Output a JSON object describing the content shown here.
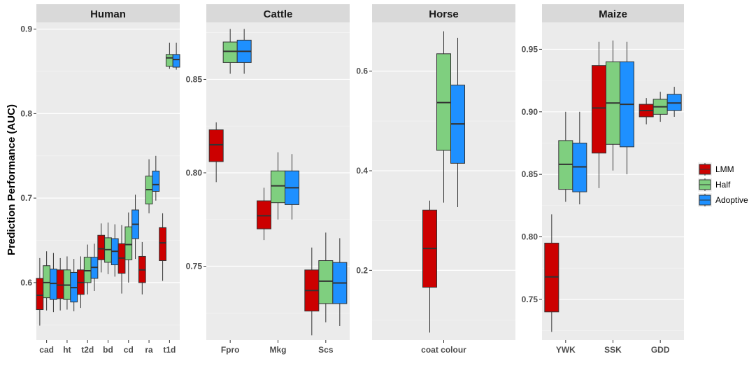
{
  "chart_data": {
    "type": "box",
    "ylabel": "Prediction Performance (AUC)",
    "colors": {
      "LMM": "#CC0000",
      "Half": "#7FCF7F",
      "Adoptive": "#1E90FF"
    },
    "legend": {
      "position": "right",
      "entries": [
        "LMM",
        "Half",
        "Adoptive"
      ]
    },
    "panels": [
      {
        "title": "Human",
        "ylim": [
          0.532,
          0.908
        ],
        "yticks": [
          0.6,
          0.7,
          0.8,
          0.9
        ],
        "ytick_labels": [
          "0.6",
          "0.7",
          "0.8",
          "0.9"
        ],
        "categories": [
          "cad",
          "ht",
          "t2d",
          "bd",
          "cd",
          "ra",
          "t1d"
        ],
        "boxes": [
          {
            "category": "cad",
            "series": "LMM",
            "lo": 0.549,
            "q1": 0.568,
            "med": 0.585,
            "q3": 0.605,
            "hi": 0.629
          },
          {
            "category": "cad",
            "series": "Half",
            "lo": 0.567,
            "q1": 0.582,
            "med": 0.6,
            "q3": 0.62,
            "hi": 0.637
          },
          {
            "category": "cad",
            "series": "Adoptive",
            "lo": 0.565,
            "q1": 0.58,
            "med": 0.599,
            "q3": 0.616,
            "hi": 0.635
          },
          {
            "category": "ht",
            "series": "LMM",
            "lo": 0.567,
            "q1": 0.581,
            "med": 0.597,
            "q3": 0.615,
            "hi": 0.629
          },
          {
            "category": "ht",
            "series": "Half",
            "lo": 0.568,
            "q1": 0.58,
            "med": 0.597,
            "q3": 0.615,
            "hi": 0.631
          },
          {
            "category": "ht",
            "series": "Adoptive",
            "lo": 0.566,
            "q1": 0.577,
            "med": 0.594,
            "q3": 0.612,
            "hi": 0.628
          },
          {
            "category": "t2d",
            "series": "LMM",
            "lo": 0.57,
            "q1": 0.586,
            "med": 0.6,
            "q3": 0.615,
            "hi": 0.631
          },
          {
            "category": "t2d",
            "series": "Half",
            "lo": 0.586,
            "q1": 0.6,
            "med": 0.614,
            "q3": 0.63,
            "hi": 0.645
          },
          {
            "category": "t2d",
            "series": "Adoptive",
            "lo": 0.59,
            "q1": 0.605,
            "med": 0.618,
            "q3": 0.63,
            "hi": 0.646
          },
          {
            "category": "bd",
            "series": "LMM",
            "lo": 0.612,
            "q1": 0.627,
            "med": 0.64,
            "q3": 0.656,
            "hi": 0.67
          },
          {
            "category": "bd",
            "series": "Half",
            "lo": 0.61,
            "q1": 0.624,
            "med": 0.639,
            "q3": 0.653,
            "hi": 0.671
          },
          {
            "category": "bd",
            "series": "Adoptive",
            "lo": 0.607,
            "q1": 0.621,
            "med": 0.637,
            "q3": 0.652,
            "hi": 0.669
          },
          {
            "category": "cd",
            "series": "LMM",
            "lo": 0.587,
            "q1": 0.611,
            "med": 0.629,
            "q3": 0.646,
            "hi": 0.668
          },
          {
            "category": "cd",
            "series": "Half",
            "lo": 0.6,
            "q1": 0.627,
            "med": 0.645,
            "q3": 0.666,
            "hi": 0.683
          },
          {
            "category": "cd",
            "series": "Adoptive",
            "lo": 0.628,
            "q1": 0.652,
            "med": 0.669,
            "q3": 0.686,
            "hi": 0.704
          },
          {
            "category": "ra",
            "series": "LMM",
            "lo": 0.586,
            "q1": 0.6,
            "med": 0.615,
            "q3": 0.631,
            "hi": 0.648
          },
          {
            "category": "ra",
            "series": "Half",
            "lo": 0.682,
            "q1": 0.693,
            "med": 0.71,
            "q3": 0.726,
            "hi": 0.746
          },
          {
            "category": "ra",
            "series": "Adoptive",
            "lo": 0.697,
            "q1": 0.708,
            "med": 0.716,
            "q3": 0.732,
            "hi": 0.75
          },
          {
            "category": "t1d",
            "series": "LMM",
            "lo": 0.602,
            "q1": 0.626,
            "med": 0.647,
            "q3": 0.665,
            "hi": 0.682
          },
          {
            "category": "t1d",
            "series": "Half",
            "lo": 0.853,
            "q1": 0.856,
            "med": 0.866,
            "q3": 0.87,
            "hi": 0.884
          },
          {
            "category": "t1d",
            "series": "Adoptive",
            "lo": 0.852,
            "q1": 0.855,
            "med": 0.864,
            "q3": 0.87,
            "hi": 0.884
          }
        ]
      },
      {
        "title": "Cattle",
        "ylim": [
          0.7105,
          0.8805
        ],
        "yticks": [
          0.75,
          0.8,
          0.85
        ],
        "ytick_labels": [
          "0.75",
          "0.80",
          "0.85"
        ],
        "categories": [
          "Fpro",
          "Mkg",
          "Scs"
        ],
        "boxes": [
          {
            "category": "Fpro",
            "series": "LMM",
            "lo": 0.795,
            "q1": 0.806,
            "med": 0.815,
            "q3": 0.823,
            "hi": 0.827
          },
          {
            "category": "Fpro",
            "series": "Half",
            "lo": 0.853,
            "q1": 0.859,
            "med": 0.865,
            "q3": 0.87,
            "hi": 0.877
          },
          {
            "category": "Fpro",
            "series": "Adoptive",
            "lo": 0.853,
            "q1": 0.859,
            "med": 0.865,
            "q3": 0.871,
            "hi": 0.877
          },
          {
            "category": "Mkg",
            "series": "LMM",
            "lo": 0.764,
            "q1": 0.77,
            "med": 0.777,
            "q3": 0.785,
            "hi": 0.792
          },
          {
            "category": "Mkg",
            "series": "Half",
            "lo": 0.775,
            "q1": 0.784,
            "med": 0.793,
            "q3": 0.801,
            "hi": 0.811
          },
          {
            "category": "Mkg",
            "series": "Adoptive",
            "lo": 0.775,
            "q1": 0.783,
            "med": 0.792,
            "q3": 0.801,
            "hi": 0.81
          },
          {
            "category": "Scs",
            "series": "LMM",
            "lo": 0.713,
            "q1": 0.726,
            "med": 0.737,
            "q3": 0.748,
            "hi": 0.76
          },
          {
            "category": "Scs",
            "series": "Half",
            "lo": 0.72,
            "q1": 0.73,
            "med": 0.742,
            "q3": 0.753,
            "hi": 0.768
          },
          {
            "category": "Scs",
            "series": "Adoptive",
            "lo": 0.718,
            "q1": 0.73,
            "med": 0.741,
            "q3": 0.752,
            "hi": 0.765
          }
        ]
      },
      {
        "title": "Horse",
        "ylim": [
          0.06,
          0.698
        ],
        "yticks": [
          0.2,
          0.4,
          0.6
        ],
        "ytick_labels": [
          "0.2",
          "0.4",
          "0.6"
        ],
        "categories": [
          "coat colour"
        ],
        "boxes": [
          {
            "category": "coat colour",
            "series": "LMM",
            "lo": 0.075,
            "q1": 0.166,
            "med": 0.244,
            "q3": 0.321,
            "hi": 0.34
          },
          {
            "category": "coat colour",
            "series": "Half",
            "lo": 0.336,
            "q1": 0.441,
            "med": 0.537,
            "q3": 0.635,
            "hi": 0.68
          },
          {
            "category": "coat colour",
            "series": "Adoptive",
            "lo": 0.327,
            "q1": 0.415,
            "med": 0.494,
            "q3": 0.572,
            "hi": 0.667
          }
        ]
      },
      {
        "title": "Maize",
        "ylim": [
          0.7175,
          0.9715
        ],
        "yticks": [
          0.75,
          0.8,
          0.85,
          0.9,
          0.95
        ],
        "ytick_labels": [
          "0.75",
          "0.80",
          "0.85",
          "0.90",
          "0.95"
        ],
        "categories": [
          "YWK",
          "SSK",
          "GDD"
        ],
        "boxes": [
          {
            "category": "YWK",
            "series": "LMM",
            "lo": 0.724,
            "q1": 0.74,
            "med": 0.768,
            "q3": 0.795,
            "hi": 0.818
          },
          {
            "category": "YWK",
            "series": "Half",
            "lo": 0.828,
            "q1": 0.838,
            "med": 0.858,
            "q3": 0.877,
            "hi": 0.9
          },
          {
            "category": "YWK",
            "series": "Adoptive",
            "lo": 0.826,
            "q1": 0.836,
            "med": 0.856,
            "q3": 0.875,
            "hi": 0.9
          },
          {
            "category": "SSK",
            "series": "LMM",
            "lo": 0.839,
            "q1": 0.867,
            "med": 0.903,
            "q3": 0.937,
            "hi": 0.956
          },
          {
            "category": "SSK",
            "series": "Half",
            "lo": 0.853,
            "q1": 0.874,
            "med": 0.907,
            "q3": 0.94,
            "hi": 0.957
          },
          {
            "category": "SSK",
            "series": "Adoptive",
            "lo": 0.85,
            "q1": 0.872,
            "med": 0.906,
            "q3": 0.94,
            "hi": 0.956
          },
          {
            "category": "GDD",
            "series": "LMM",
            "lo": 0.89,
            "q1": 0.896,
            "med": 0.901,
            "q3": 0.906,
            "hi": 0.911
          },
          {
            "category": "GDD",
            "series": "Half",
            "lo": 0.892,
            "q1": 0.898,
            "med": 0.904,
            "q3": 0.91,
            "hi": 0.916
          },
          {
            "category": "GDD",
            "series": "Adoptive",
            "lo": 0.896,
            "q1": 0.901,
            "med": 0.907,
            "q3": 0.914,
            "hi": 0.92
          }
        ]
      }
    ]
  }
}
